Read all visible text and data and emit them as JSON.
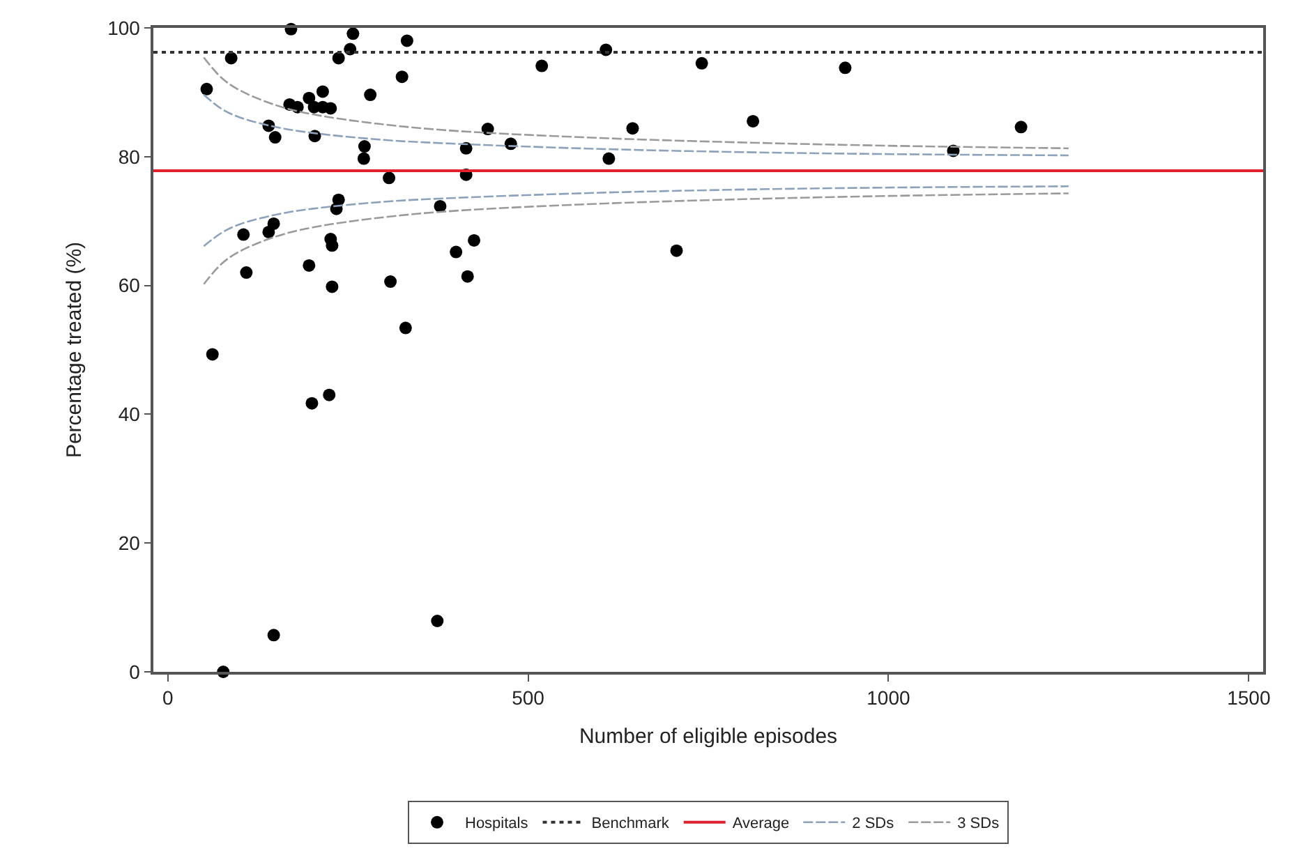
{
  "chart_data": {
    "type": "scatter",
    "xlabel": "Number of eligible episodes",
    "ylabel": "Percentage treated (%)",
    "xlim": [
      -20,
      1520
    ],
    "xticks": [
      0,
      500,
      1000,
      1500
    ],
    "ylim": [
      0,
      100
    ],
    "yticks": [
      0,
      20,
      40,
      60,
      80,
      100
    ],
    "grid": false,
    "legend": "bottom",
    "marker": "circle",
    "series": [
      {
        "name": "Hospitals",
        "color": "#000000",
        "x": [
          171,
          257,
          332,
          253,
          237,
          88,
          325,
          519,
          54,
          215,
          281,
          196,
          169,
          180,
          203,
          215,
          226,
          140,
          149,
          204,
          444,
          273,
          414,
          476,
          272,
          307,
          414,
          237,
          234,
          378,
          105,
          147,
          140,
          226,
          228,
          425,
          400,
          109,
          196,
          416,
          309,
          228,
          330,
          62,
          200,
          224,
          147,
          374,
          77,
          608,
          741,
          940,
          645,
          812,
          1184,
          612,
          1090,
          706
        ],
        "values": [
          99.8,
          99.1,
          98.0,
          96.7,
          95.3,
          95.3,
          92.4,
          94.1,
          90.5,
          90.1,
          89.6,
          89.1,
          88.1,
          87.7,
          87.7,
          87.7,
          87.5,
          84.8,
          83.0,
          83.2,
          84.3,
          81.6,
          81.3,
          82.0,
          79.7,
          76.7,
          77.2,
          73.3,
          71.9,
          72.3,
          67.9,
          69.6,
          68.3,
          67.2,
          66.2,
          67.0,
          65.2,
          62.0,
          63.1,
          61.4,
          60.6,
          59.8,
          53.4,
          49.3,
          41.7,
          43.0,
          5.7,
          7.9,
          0,
          96.6,
          94.5,
          93.8,
          84.4,
          85.5,
          84.6,
          79.7,
          80.9,
          65.4
        ]
      },
      {
        "name": "2 SDs",
        "type": "line",
        "color": "#8da2b8",
        "line_style": "dashed",
        "marker": "none",
        "x": [
          50,
          75,
          100,
          150,
          200,
          300,
          400,
          600,
          800,
          1000,
          1250
        ],
        "values": [
          89.6,
          87.4,
          86.1,
          84.6,
          83.7,
          82.6,
          82.0,
          81.2,
          80.7,
          80.4,
          80.2
        ]
      },
      {
        "type": "line",
        "color": "#8da2b8",
        "line_style": "dashed",
        "marker": "none",
        "x": [
          50,
          75,
          100,
          150,
          200,
          300,
          400,
          600,
          800,
          1000,
          1250
        ],
        "values": [
          66.1,
          68.2,
          69.5,
          71.0,
          71.9,
          73.0,
          73.6,
          74.4,
          74.9,
          75.2,
          75.4
        ]
      },
      {
        "name": "3 SDs",
        "type": "line",
        "color": "#9a9a9a",
        "line_style": "dashed",
        "marker": "none",
        "x": [
          50,
          75,
          100,
          150,
          200,
          300,
          400,
          600,
          800,
          1000,
          1250
        ],
        "values": [
          95.4,
          92.2,
          90.3,
          88.0,
          86.6,
          85.0,
          84.0,
          82.9,
          82.2,
          81.7,
          81.3
        ]
      },
      {
        "type": "line",
        "color": "#9a9a9a",
        "line_style": "dashed",
        "marker": "none",
        "x": [
          50,
          75,
          100,
          150,
          200,
          300,
          400,
          600,
          800,
          1000,
          1250
        ],
        "values": [
          60.2,
          63.4,
          65.3,
          67.6,
          69.0,
          70.6,
          71.6,
          72.7,
          73.4,
          73.9,
          74.3
        ]
      }
    ],
    "ref_lines": [
      {
        "axis": "y",
        "value": 96.2,
        "label": "Benchmark",
        "color": "#333333",
        "line_style": "dotted"
      },
      {
        "axis": "y",
        "value": 77.8,
        "label": "Average",
        "color": "#e0212e",
        "line_style": "solid"
      }
    ]
  }
}
